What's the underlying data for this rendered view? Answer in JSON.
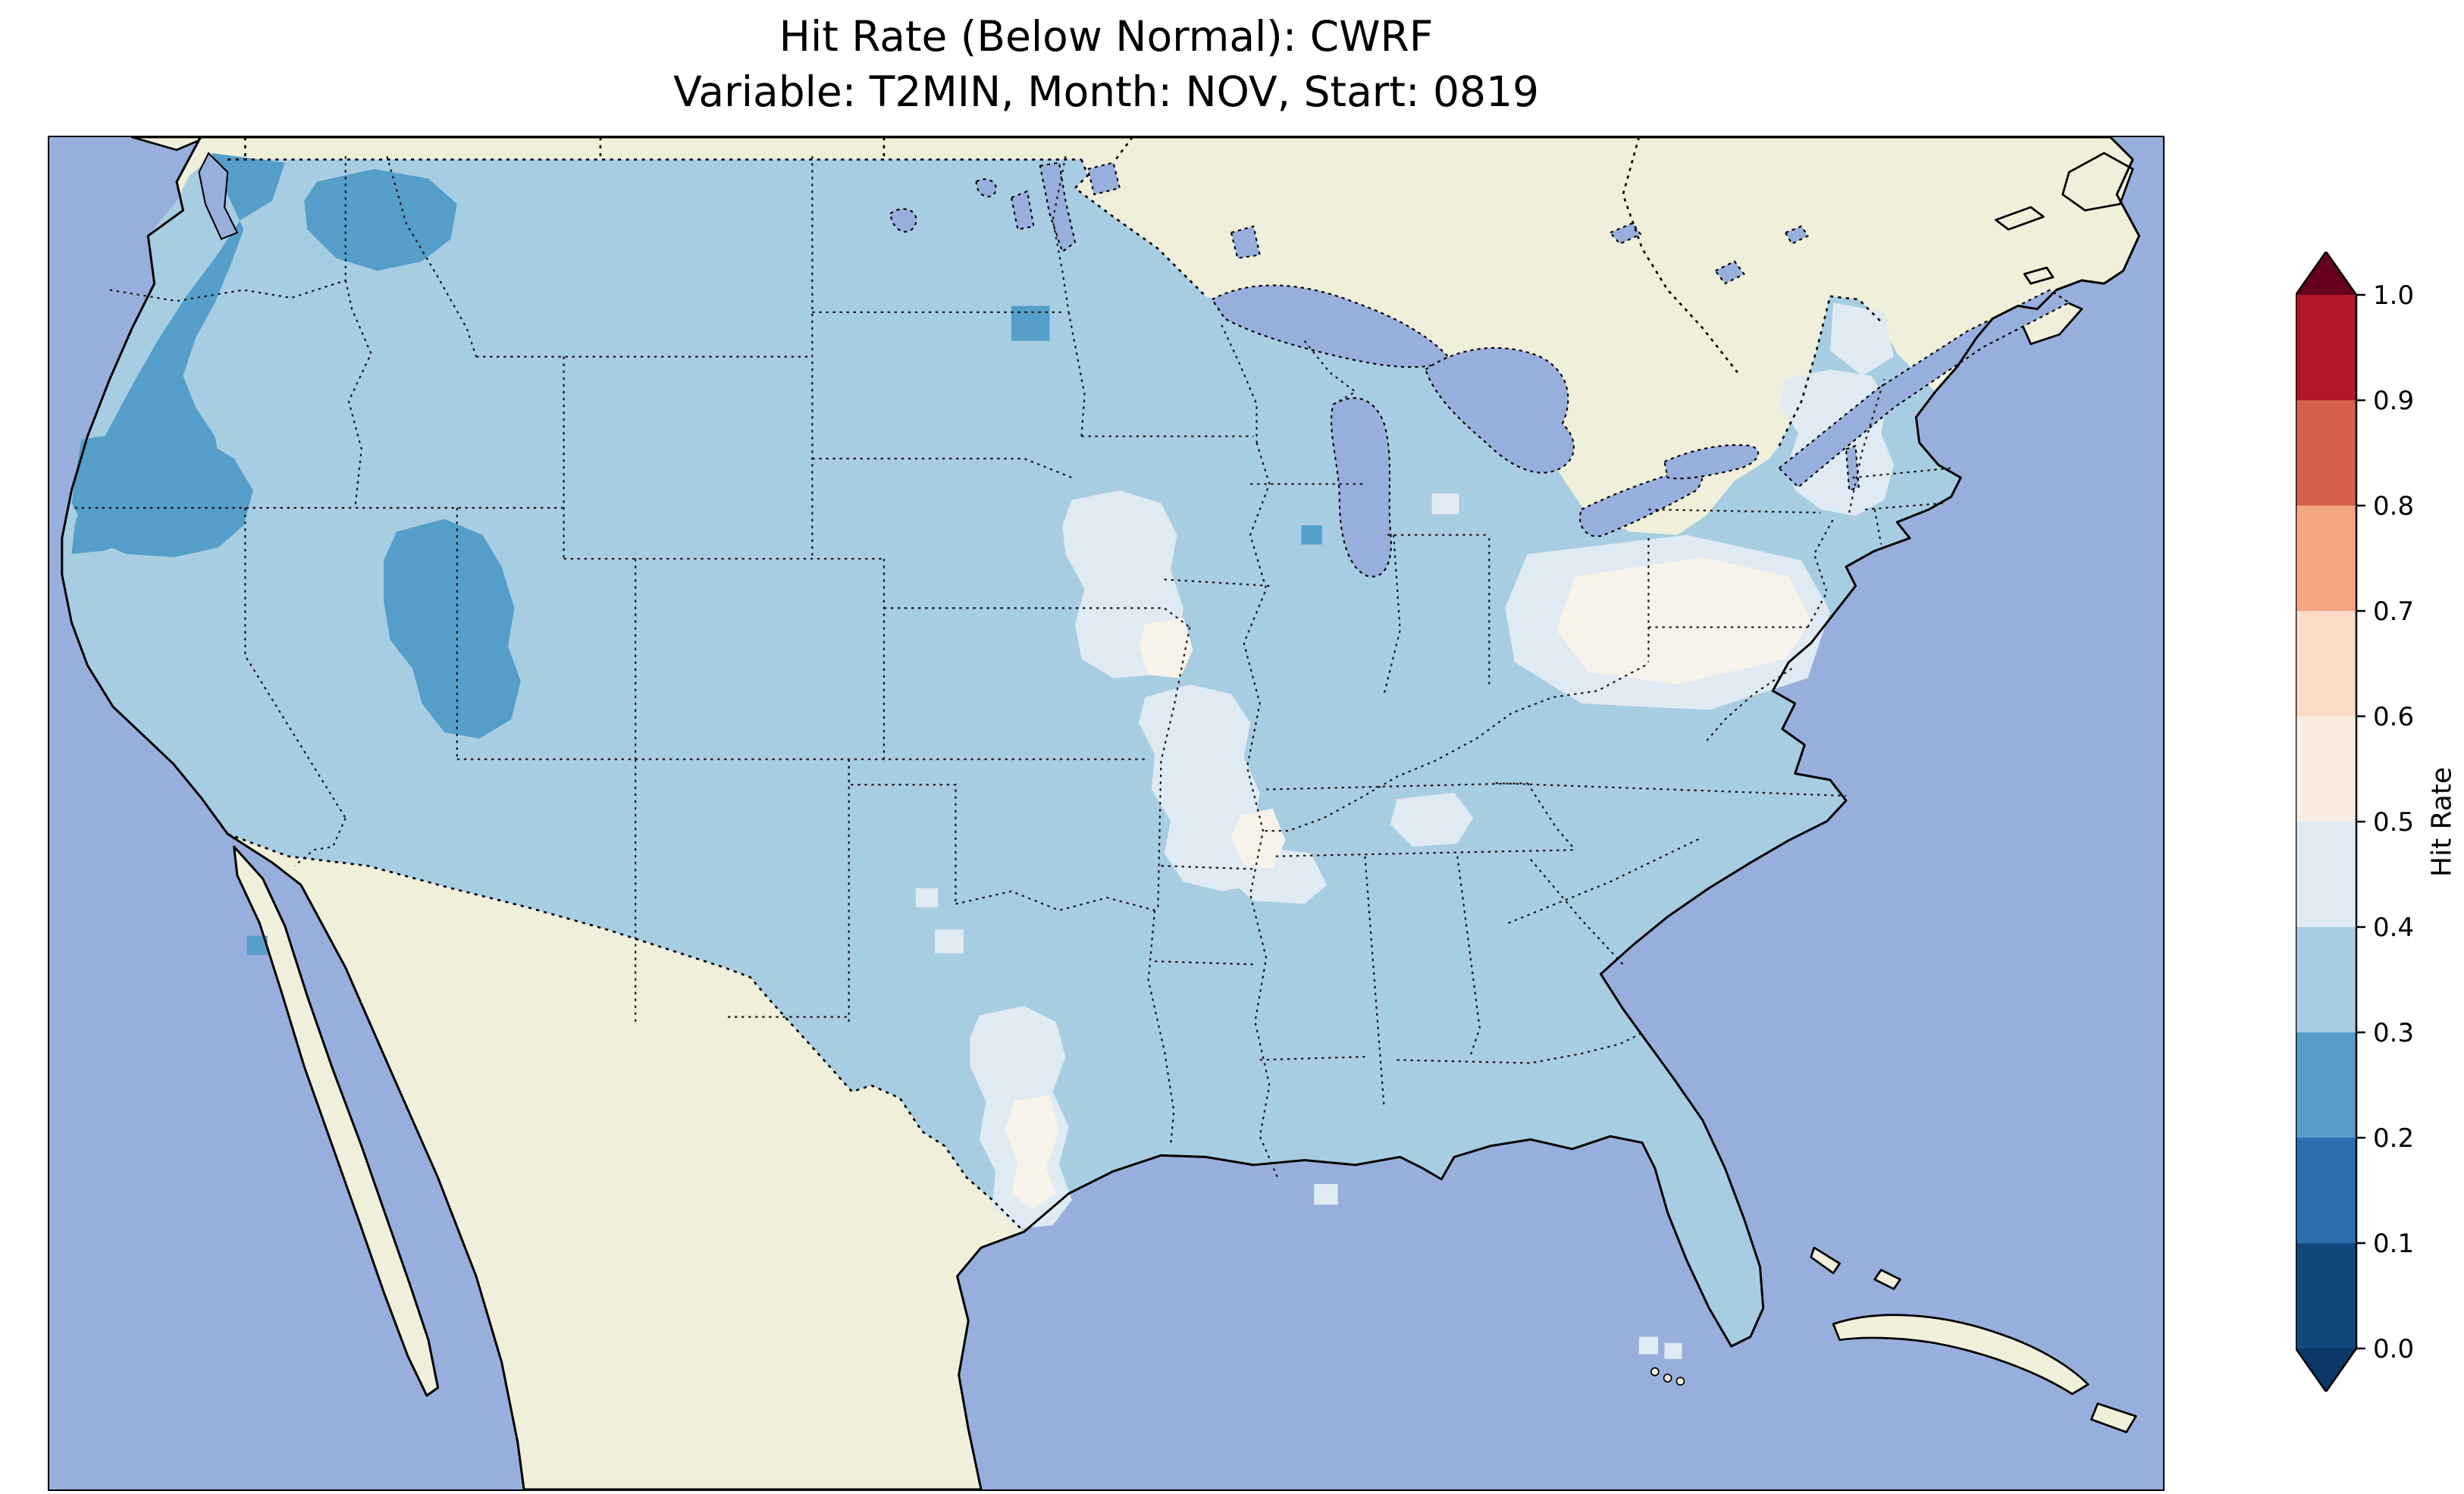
{
  "figure": {
    "title_line1": "Hit Rate (Below Normal): CWRF",
    "title_line2": "Variable: T2MIN, Month: NOV, Start: 0819"
  },
  "chart_data": {
    "type": "heatmap",
    "title": "Hit Rate (Below Normal): CWRF",
    "subtitle": "Variable: T2MIN, Month: NOV, Start: 0819",
    "model": "CWRF",
    "metric": "Hit Rate (Below Normal)",
    "variable": "T2MIN",
    "month": "NOV",
    "start": "0819",
    "region": "Contiguous United States",
    "basemap": "lat/lon map of CONUS with southern Canada, Mexico, Great Lakes, Atlantic, Pacific and Gulf coasts visible; dotted state and national borders",
    "colorbar": {
      "label": "Hit Rate",
      "orientation": "vertical",
      "extend": "both",
      "levels": [
        0.0,
        0.1,
        0.2,
        0.3,
        0.4,
        0.5,
        0.6,
        0.7,
        0.8,
        0.9,
        1.0
      ],
      "tick_labels": [
        "1.0",
        "0.9",
        "0.8",
        "0.7",
        "0.6",
        "0.5",
        "0.4",
        "0.3",
        "0.2",
        "0.1",
        "0.0"
      ],
      "band_colors_top_to_bottom": [
        "#b2182b",
        "#d6604d",
        "#f4a582",
        "#fddbc7",
        "#f9ede3",
        "#dfeaf3",
        "#a7cde2",
        "#549ec9",
        "#2a6fae",
        "#12477c"
      ],
      "over_color": "#67001f",
      "under_color": "#0b3866"
    },
    "map_colors": {
      "ocean": "#98aedd",
      "land": "#f0efdb",
      "lake": "#98aedd",
      "coastline": "#000000"
    },
    "value_colors": {
      "hit_02_03": "#549ec9",
      "hit_03_04": "#a7cde2",
      "hit_04_05": "#dfeaf3",
      "hit_05_06": "#f7f2ea"
    },
    "field_summary": [
      {
        "region": "Most of the contiguous US",
        "hit_rate": "0.3-0.4"
      },
      {
        "region": "Pacific Northwest and northern California coast, northern Rockies, Idaho-Utah-Nevada highlands, spots in ND and WI",
        "hit_rate": "0.2-0.3"
      },
      {
        "region": "Minnesota/eastern Dakotas, Iowa-Missouri-Illinois, central Texas, Kentucky area, upstate New York, New England, Maine patches",
        "hit_rate": "0.4-0.5"
      },
      {
        "region": "Pennsylvania-eastern Ohio-western New York core, spots in Minnesota, Missouri and central Texas",
        "hit_rate": "0.5-0.6"
      }
    ]
  }
}
